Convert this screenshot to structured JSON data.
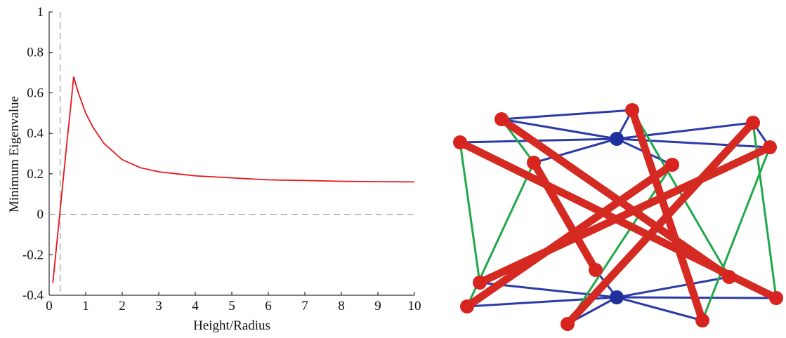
{
  "chart_data": {
    "type": "line",
    "x_label": "Height/Radius",
    "y_label": "Minimum Eigenvalue",
    "x": [
      0.1,
      0.2,
      0.3,
      0.4,
      0.5,
      0.6,
      0.67,
      0.8,
      1,
      1.2,
      1.5,
      2,
      2.5,
      3,
      4,
      5,
      6,
      7,
      8,
      9,
      10
    ],
    "values": [
      -0.34,
      -0.16,
      0.02,
      0.2,
      0.38,
      0.55,
      0.68,
      0.6,
      0.5,
      0.43,
      0.35,
      0.27,
      0.23,
      0.21,
      0.19,
      0.18,
      0.17,
      0.167,
      0.163,
      0.161,
      0.16
    ],
    "color": "#e8141c",
    "xlim": [
      0,
      10
    ],
    "ylim": [
      -0.4,
      1
    ],
    "xticks": [
      0,
      1,
      2,
      3,
      4,
      5,
      6,
      7,
      8,
      9,
      10
    ],
    "yticks": [
      -0.4,
      -0.2,
      0,
      0.2,
      0.4,
      0.6,
      0.8,
      1
    ],
    "reference_lines": {
      "x": 0.3,
      "y": 0
    }
  }
}
